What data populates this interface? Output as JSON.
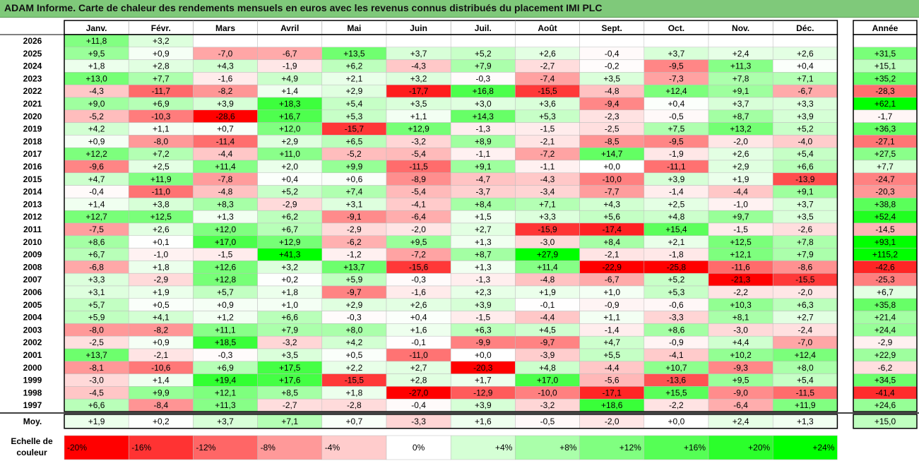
{
  "title": "ADAM Informe. Carte de chaleur des rendements mensuels en euros avec les revenus connus distribués du placement IMI PLC",
  "chart_data": {
    "type": "heatmap",
    "title": "ADAM Informe. Carte de chaleur des rendements mensuels en euros avec les revenus connus distribués du placement IMI PLC",
    "columns": [
      "Janv.",
      "Févr.",
      "Mars",
      "Avril",
      "Mai",
      "Juin",
      "Juil.",
      "Août",
      "Sept.",
      "Oct.",
      "Nov.",
      "Déc."
    ],
    "year_column_label": "Année",
    "rows": [
      {
        "year": "2026",
        "values": [
          "+11,8",
          "+3,2",
          "",
          "",
          "",
          "",
          "",
          "",
          "",
          "",
          "",
          ""
        ],
        "annual": ""
      },
      {
        "year": "2025",
        "values": [
          "+9,5",
          "+0,9",
          "-7,0",
          "-6,7",
          "+13,5",
          "+3,7",
          "+5,2",
          "+2,6",
          "-0,4",
          "+3,7",
          "+2,4",
          "+2,6"
        ],
        "annual": "+31,5"
      },
      {
        "year": "2024",
        "values": [
          "+1,8",
          "+2,8",
          "+4,3",
          "-1,9",
          "+6,2",
          "-4,3",
          "+7,9",
          "-2,7",
          "-0,2",
          "-9,5",
          "+11,3",
          "+0,4"
        ],
        "annual": "+15,1"
      },
      {
        "year": "2023",
        "values": [
          "+13,0",
          "+7,7",
          "-1,6",
          "+4,9",
          "+2,1",
          "+3,2",
          "-0,3",
          "-7,4",
          "+3,5",
          "-7,3",
          "+7,8",
          "+7,1"
        ],
        "annual": "+35,2"
      },
      {
        "year": "2022",
        "values": [
          "-4,3",
          "-11,7",
          "-8,2",
          "+1,4",
          "+2,9",
          "-17,7",
          "+16,8",
          "-15,5",
          "-4,8",
          "+12,4",
          "+9,1",
          "-6,7"
        ],
        "annual": "-28,3"
      },
      {
        "year": "2021",
        "values": [
          "+9,0",
          "+6,9",
          "+3,9",
          "+18,3",
          "+5,4",
          "+3,5",
          "+3,0",
          "+3,6",
          "-9,4",
          "+0,4",
          "+3,7",
          "+3,3"
        ],
        "annual": "+62,1"
      },
      {
        "year": "2020",
        "values": [
          "-5,2",
          "-10,3",
          "-28,6",
          "+16,7",
          "+5,3",
          "+1,1",
          "+14,3",
          "+5,3",
          "-2,3",
          "-0,5",
          "+8,7",
          "+3,9"
        ],
        "annual": "-1,7"
      },
      {
        "year": "2019",
        "values": [
          "+4,2",
          "+1,1",
          "+0,7",
          "+12,0",
          "-15,7",
          "+12,9",
          "-1,3",
          "-1,5",
          "-2,5",
          "+7,5",
          "+13,2",
          "+5,2"
        ],
        "annual": "+36,3"
      },
      {
        "year": "2018",
        "values": [
          "+0,9",
          "-8,0",
          "-11,4",
          "+2,9",
          "+6,5",
          "-3,2",
          "+8,9",
          "-2,1",
          "-8,5",
          "-9,5",
          "-2,0",
          "-4,0"
        ],
        "annual": "-27,1"
      },
      {
        "year": "2017",
        "values": [
          "+12,2",
          "+7,2",
          "-4,4",
          "+11,0",
          "-5,2",
          "-5,4",
          "-1,1",
          "-7,2",
          "+14,7",
          "-1,9",
          "+2,6",
          "+5,4"
        ],
        "annual": "+27,5"
      },
      {
        "year": "2016",
        "values": [
          "-9,6",
          "+2,5",
          "+11,4",
          "+2,0",
          "+9,9",
          "-11,5",
          "+9,1",
          "-1,1",
          "+0,0",
          "-11,1",
          "+2,9",
          "+6,6"
        ],
        "annual": "+7,7"
      },
      {
        "year": "2015",
        "values": [
          "+4,7",
          "+11,9",
          "-7,8",
          "+0,4",
          "+0,6",
          "-8,9",
          "-4,7",
          "-4,3",
          "-10,0",
          "+3,9",
          "+1,9",
          "-13,9"
        ],
        "annual": "-24,7"
      },
      {
        "year": "2014",
        "values": [
          "-0,4",
          "-11,0",
          "-4,8",
          "+5,2",
          "+7,4",
          "-5,4",
          "-3,7",
          "-3,4",
          "-7,7",
          "-1,4",
          "-4,4",
          "+9,1"
        ],
        "annual": "-20,3"
      },
      {
        "year": "2013",
        "values": [
          "+1,4",
          "+3,8",
          "+8,3",
          "-2,9",
          "+3,1",
          "-4,1",
          "+8,4",
          "+7,1",
          "+4,3",
          "+2,5",
          "-1,0",
          "+3,7"
        ],
        "annual": "+38,8"
      },
      {
        "year": "2012",
        "values": [
          "+12,7",
          "+12,5",
          "+1,3",
          "+6,2",
          "-9,1",
          "-6,4",
          "+1,5",
          "+3,3",
          "+5,6",
          "+4,8",
          "+9,7",
          "+3,5"
        ],
        "annual": "+52,4"
      },
      {
        "year": "2011",
        "values": [
          "-7,5",
          "+2,6",
          "+12,0",
          "+6,7",
          "-2,9",
          "-2,0",
          "+2,7",
          "-15,9",
          "-17,4",
          "+15,4",
          "-1,5",
          "-2,6"
        ],
        "annual": "-14,5"
      },
      {
        "year": "2010",
        "values": [
          "+8,6",
          "+0,1",
          "+17,0",
          "+12,9",
          "-6,2",
          "+9,5",
          "+1,3",
          "-3,0",
          "+8,4",
          "+2,1",
          "+12,5",
          "+7,8"
        ],
        "annual": "+93,1"
      },
      {
        "year": "2009",
        "values": [
          "+6,7",
          "-1,0",
          "-1,5",
          "+41,3",
          "-1,2",
          "-7,2",
          "+8,7",
          "+27,9",
          "-2,1",
          "-1,8",
          "+12,1",
          "+7,9"
        ],
        "annual": "+115,2"
      },
      {
        "year": "2008",
        "values": [
          "-6,8",
          "+1,8",
          "+12,6",
          "+3,2",
          "+13,7",
          "-15,6",
          "+1,3",
          "+11,4",
          "-22,9",
          "-25,8",
          "-11,6",
          "-8,6"
        ],
        "annual": "-42,6"
      },
      {
        "year": "2007",
        "values": [
          "+3,3",
          "-2,9",
          "+12,8",
          "+0,2",
          "+5,9",
          "-0,3",
          "-1,3",
          "-4,8",
          "-6,7",
          "+5,2",
          "-21,3",
          "-15,5"
        ],
        "annual": "-25,3"
      },
      {
        "year": "2006",
        "values": [
          "+3,1",
          "+1,9",
          "+5,7",
          "+1,8",
          "-9,7",
          "-1,6",
          "+2,3",
          "+1,9",
          "+1,0",
          "+5,3",
          "-2,2",
          "-2,0"
        ],
        "annual": "+6,7"
      },
      {
        "year": "2005",
        "values": [
          "+5,7",
          "+0,5",
          "+0,9",
          "+1,0",
          "+2,9",
          "+2,6",
          "+3,9",
          "-0,1",
          "-0,9",
          "-0,6",
          "+10,3",
          "+6,3"
        ],
        "annual": "+35,8"
      },
      {
        "year": "2004",
        "values": [
          "+5,9",
          "+4,1",
          "+1,2",
          "+6,6",
          "-0,3",
          "+0,4",
          "-1,5",
          "-4,4",
          "+1,1",
          "-3,3",
          "+8,1",
          "+2,7"
        ],
        "annual": "+21,4"
      },
      {
        "year": "2003",
        "values": [
          "-8,0",
          "-8,2",
          "+11,1",
          "+7,9",
          "+8,0",
          "+1,6",
          "+6,3",
          "+4,5",
          "-1,4",
          "+8,6",
          "-3,0",
          "-2,4"
        ],
        "annual": "+24,4"
      },
      {
        "year": "2002",
        "values": [
          "-2,5",
          "+0,9",
          "+18,5",
          "-3,2",
          "+4,2",
          "-0,1",
          "-9,9",
          "-9,7",
          "+4,7",
          "-0,9",
          "+4,4",
          "-7,0"
        ],
        "annual": "-2,9"
      },
      {
        "year": "2001",
        "values": [
          "+13,7",
          "-2,1",
          "-0,3",
          "+3,5",
          "+0,5",
          "-11,0",
          "+0,0",
          "-3,9",
          "+5,5",
          "-4,1",
          "+10,2",
          "+12,4"
        ],
        "annual": "+22,9"
      },
      {
        "year": "2000",
        "values": [
          "-8,1",
          "-10,6",
          "+6,9",
          "+17,5",
          "+2,2",
          "+2,7",
          "-20,3",
          "+4,8",
          "-4,4",
          "+10,7",
          "-9,3",
          "+8,0"
        ],
        "annual": "-6,2"
      },
      {
        "year": "1999",
        "values": [
          "-3,0",
          "+1,4",
          "+19,4",
          "+17,6",
          "-15,5",
          "+2,8",
          "+1,7",
          "+17,0",
          "-5,6",
          "-13,6",
          "+9,5",
          "+5,4"
        ],
        "annual": "+34,5"
      },
      {
        "year": "1998",
        "values": [
          "-4,5",
          "+9,9",
          "+12,1",
          "+8,5",
          "+1,8",
          "-27,0",
          "-12,9",
          "-10,0",
          "-17,1",
          "+15,5",
          "-9,0",
          "-11,5"
        ],
        "annual": "-41,4"
      },
      {
        "year": "1997",
        "values": [
          "+6,6",
          "-8,4",
          "+11,3",
          "-2,7",
          "-2,8",
          "-0,4",
          "+3,9",
          "-3,2",
          "+18,6",
          "-2,2",
          "-6,4",
          "+11,9"
        ],
        "annual": "+24,6"
      }
    ],
    "average": {
      "label": "Moy.",
      "values": [
        "+1,9",
        "+0,2",
        "+3,7",
        "+7,1",
        "+0,7",
        "-3,3",
        "+1,6",
        "-0,5",
        "-2,0",
        "+0,0",
        "+2,4",
        "+1,3"
      ],
      "annual": "+15,0"
    },
    "scale": {
      "label_line1": "Echelle de",
      "label_line2": "couleur",
      "steps": [
        "-20%",
        "-16%",
        "-12%",
        "-8%",
        "-4%",
        "0%",
        "+4%",
        "+8%",
        "+12%",
        "+16%",
        "+20%",
        "+24%"
      ]
    },
    "colors": {
      "negative_max": "#ff0000",
      "neutral": "#ffffff",
      "positive_max": "#00ff00",
      "title_bg": "#7fc97a"
    }
  }
}
